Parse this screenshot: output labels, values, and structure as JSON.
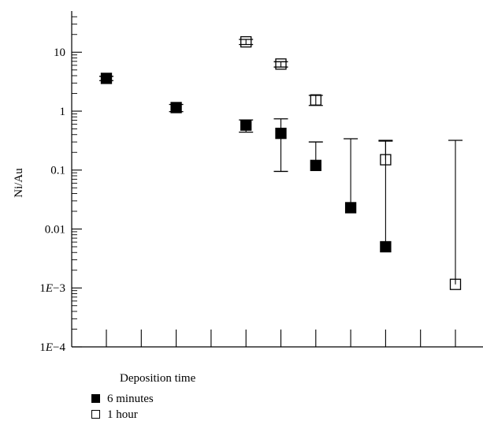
{
  "chart_data": {
    "type": "scatter",
    "ylabel": "Ni/Au",
    "yscale": "log",
    "ylim": [
      0.0001,
      50
    ],
    "y_ticks": [
      "1E−4",
      "1E−3",
      "0.01",
      "0.1",
      "1",
      "10"
    ],
    "x_tick_count": 11,
    "grid": false,
    "legend_position": "bottom-left",
    "legend_title": "Deposition time",
    "series": [
      {
        "name": "6 minutes",
        "marker": "filled-square",
        "color": "#000000",
        "points": [
          {
            "x": 1,
            "y": 3.6,
            "err_low": 3.3,
            "err_high": 3.9
          },
          {
            "x": 3,
            "y": 1.15,
            "err_low": 0.98,
            "err_high": 1.3
          },
          {
            "x": 5,
            "y": 0.58,
            "err_low": 0.44,
            "err_high": 0.71
          },
          {
            "x": 6,
            "y": 0.42,
            "err_low": 0.095,
            "err_high": 0.74
          },
          {
            "x": 7,
            "y": 0.12,
            "err_low": null,
            "err_high": 0.3
          },
          {
            "x": 8,
            "y": 0.023,
            "err_low": null,
            "err_high": 0.34
          },
          {
            "x": 9,
            "y": 0.005,
            "err_low": null,
            "err_high": 0.32
          }
        ]
      },
      {
        "name": "1 hour",
        "marker": "open-square",
        "color": "#000000",
        "points": [
          {
            "x": 5,
            "y": 15,
            "err_low": 13.5,
            "err_high": 16.5
          },
          {
            "x": 6,
            "y": 6.3,
            "err_low": 5.6,
            "err_high": 6.9
          },
          {
            "x": 7,
            "y": 1.55,
            "err_low": 1.25,
            "err_high": 1.85
          },
          {
            "x": 9,
            "y": 0.15,
            "err_low": null,
            "err_high": 0.31
          },
          {
            "x": 11,
            "y": 0.00115,
            "err_low": null,
            "err_high": 0.32
          }
        ]
      }
    ]
  }
}
